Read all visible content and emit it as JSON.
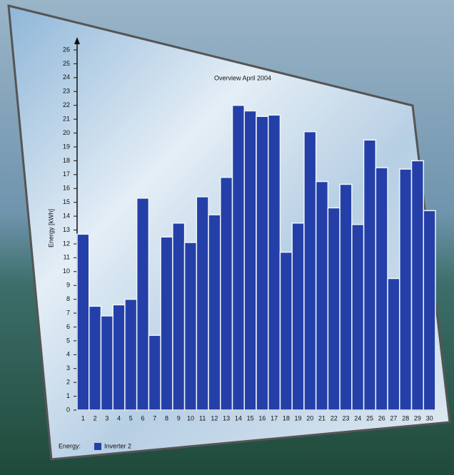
{
  "chart_data": {
    "type": "bar",
    "title": "Overview April 2004",
    "y_label": "Energy [kWh]",
    "categories": [
      "1",
      "2",
      "3",
      "4",
      "5",
      "6",
      "7",
      "8",
      "9",
      "10",
      "11",
      "12",
      "13",
      "14",
      "15",
      "16",
      "17",
      "18",
      "19",
      "20",
      "21",
      "22",
      "23",
      "24",
      "25",
      "26",
      "27",
      "28",
      "29",
      "30"
    ],
    "series": [
      {
        "name": "Inverter 2",
        "color": "#2440a8",
        "values": [
          12.7,
          7.5,
          6.8,
          7.6,
          8.0,
          15.3,
          5.4,
          12.5,
          13.5,
          12.1,
          15.4,
          14.1,
          16.8,
          22.0,
          21.6,
          21.2,
          21.3,
          11.4,
          13.5,
          20.1,
          16.5,
          14.6,
          16.3,
          13.4,
          19.5,
          17.5,
          9.5,
          17.4,
          18.0,
          14.4
        ]
      }
    ],
    "legend_title": "Energy:",
    "ylim": [
      0,
      26
    ],
    "yticks": [
      0,
      1,
      2,
      3,
      4,
      5,
      6,
      7,
      8,
      9,
      10,
      11,
      12,
      13,
      14,
      15,
      16,
      17,
      18,
      19,
      20,
      21,
      22,
      23,
      24,
      25,
      26
    ]
  }
}
